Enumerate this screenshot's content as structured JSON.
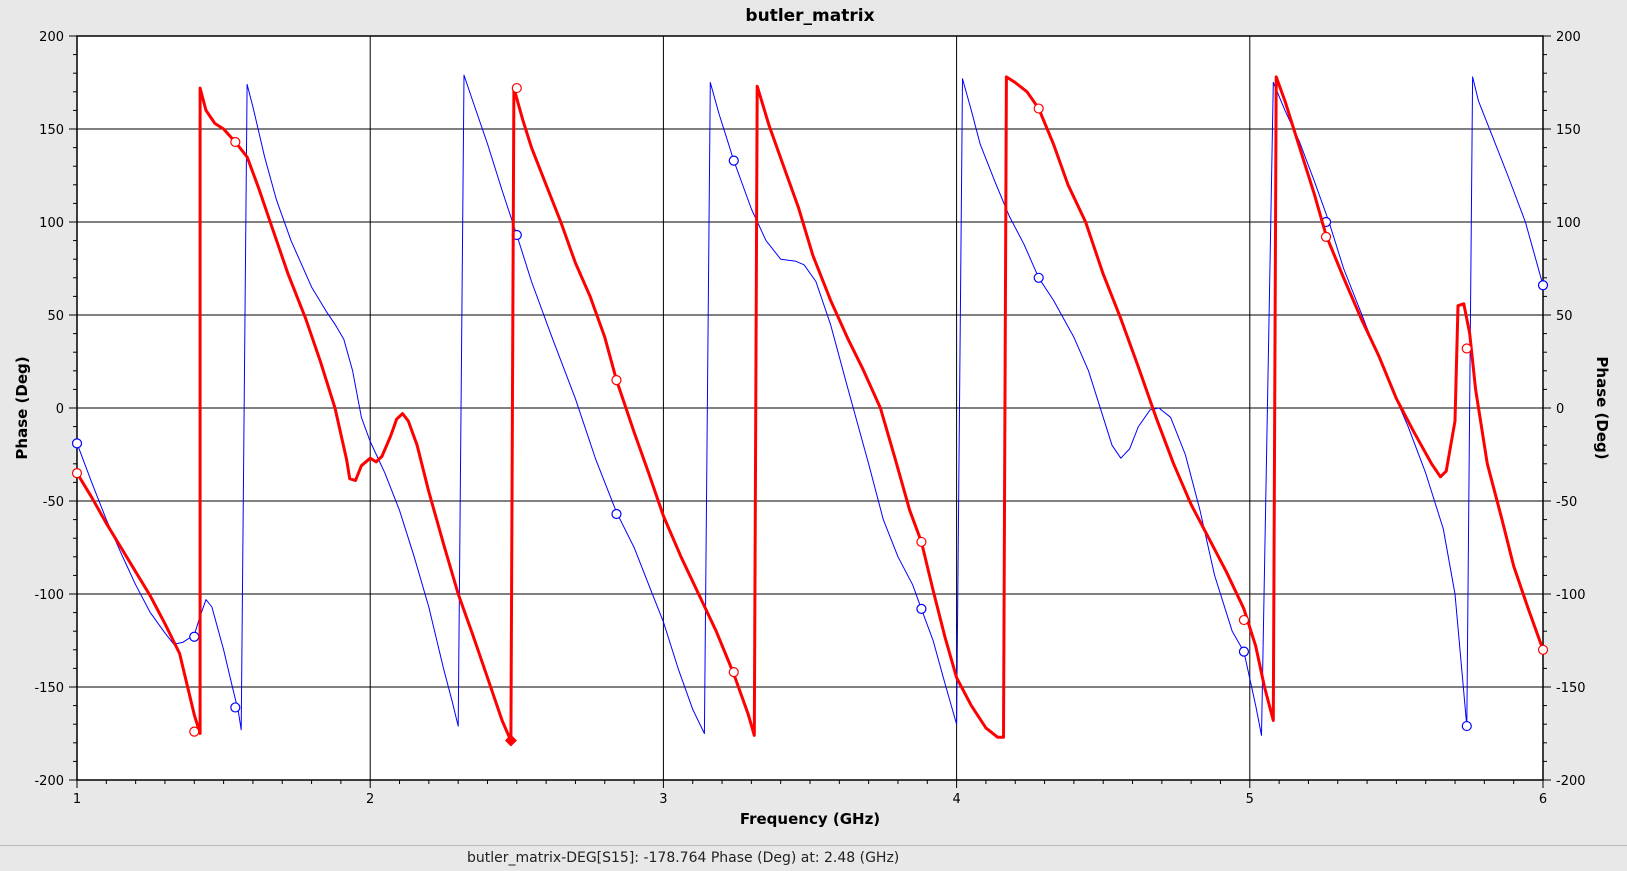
{
  "colors": {
    "background": "#e8e8e8",
    "plot_background": "#ffffff",
    "grid": "#000000",
    "series_s15": "#ff0000",
    "series_other": "#0000ff"
  },
  "status_bar": {
    "text": "butler_matrix-DEG[S15]: -178.764 Phase (Deg) at: 2.48 (GHz)"
  },
  "chart_data": {
    "type": "line",
    "title": "butler_matrix",
    "xlabel": "Frequency (GHz)",
    "ylabel": "Phase (Deg)",
    "ylabel_right": "Phase (Deg)",
    "xlim": [
      1,
      6
    ],
    "ylim": [
      -200,
      200
    ],
    "x_ticks": [
      1,
      2,
      3,
      4,
      5,
      6
    ],
    "y_ticks": [
      -200,
      -150,
      -100,
      -50,
      0,
      50,
      100,
      150,
      200
    ],
    "x_minor_step": 0.1,
    "y_minor_step": 10,
    "grid": true,
    "legend": "none",
    "series": [
      {
        "color": "#ff0000",
        "line_width": 3,
        "points": [
          [
            1.0,
            -35
          ],
          [
            1.05,
            -48
          ],
          [
            1.1,
            -62
          ],
          [
            1.15,
            -75
          ],
          [
            1.2,
            -88
          ],
          [
            1.25,
            -101
          ],
          [
            1.3,
            -116
          ],
          [
            1.35,
            -132
          ],
          [
            1.4,
            -165
          ],
          [
            1.42,
            -175
          ],
          [
            1.42,
            172
          ],
          [
            1.44,
            160
          ],
          [
            1.47,
            153
          ],
          [
            1.5,
            150
          ],
          [
            1.54,
            143
          ],
          [
            1.58,
            135
          ],
          [
            1.62,
            118
          ],
          [
            1.67,
            95
          ],
          [
            1.72,
            72
          ],
          [
            1.78,
            48
          ],
          [
            1.83,
            25
          ],
          [
            1.88,
            0
          ],
          [
            1.92,
            -28
          ],
          [
            1.93,
            -38
          ],
          [
            1.95,
            -39
          ],
          [
            1.97,
            -31
          ],
          [
            2.0,
            -27
          ],
          [
            2.02,
            -29
          ],
          [
            2.04,
            -26
          ],
          [
            2.07,
            -15
          ],
          [
            2.09,
            -6
          ],
          [
            2.11,
            -3
          ],
          [
            2.13,
            -7
          ],
          [
            2.16,
            -20
          ],
          [
            2.2,
            -45
          ],
          [
            2.25,
            -73
          ],
          [
            2.3,
            -100
          ],
          [
            2.35,
            -122
          ],
          [
            2.4,
            -145
          ],
          [
            2.45,
            -168
          ],
          [
            2.48,
            -179
          ],
          [
            2.49,
            172
          ],
          [
            2.52,
            155
          ],
          [
            2.55,
            140
          ],
          [
            2.6,
            120
          ],
          [
            2.65,
            100
          ],
          [
            2.7,
            78
          ],
          [
            2.75,
            60
          ],
          [
            2.8,
            38
          ],
          [
            2.84,
            15
          ],
          [
            2.9,
            -13
          ],
          [
            2.95,
            -35
          ],
          [
            3.0,
            -58
          ],
          [
            3.06,
            -80
          ],
          [
            3.12,
            -100
          ],
          [
            3.18,
            -120
          ],
          [
            3.24,
            -143
          ],
          [
            3.29,
            -165
          ],
          [
            3.31,
            -176
          ],
          [
            3.32,
            173
          ],
          [
            3.36,
            152
          ],
          [
            3.41,
            130
          ],
          [
            3.46,
            108
          ],
          [
            3.51,
            82
          ],
          [
            3.57,
            58
          ],
          [
            3.63,
            37
          ],
          [
            3.68,
            21
          ],
          [
            3.74,
            0
          ],
          [
            3.79,
            -27
          ],
          [
            3.84,
            -55
          ],
          [
            3.88,
            -72
          ],
          [
            3.92,
            -98
          ],
          [
            3.96,
            -123
          ],
          [
            4.0,
            -145
          ],
          [
            4.05,
            -160
          ],
          [
            4.1,
            -172
          ],
          [
            4.14,
            -177
          ],
          [
            4.16,
            -177
          ],
          [
            4.17,
            178
          ],
          [
            4.2,
            175
          ],
          [
            4.24,
            170
          ],
          [
            4.28,
            161
          ],
          [
            4.33,
            142
          ],
          [
            4.38,
            120
          ],
          [
            4.44,
            100
          ],
          [
            4.5,
            72
          ],
          [
            4.56,
            48
          ],
          [
            4.62,
            22
          ],
          [
            4.68,
            -5
          ],
          [
            4.74,
            -30
          ],
          [
            4.8,
            -52
          ],
          [
            4.86,
            -70
          ],
          [
            4.92,
            -88
          ],
          [
            4.98,
            -108
          ],
          [
            5.02,
            -128
          ],
          [
            5.05,
            -150
          ],
          [
            5.08,
            -168
          ],
          [
            5.09,
            178
          ],
          [
            5.12,
            165
          ],
          [
            5.17,
            140
          ],
          [
            5.22,
            115
          ],
          [
            5.26,
            93
          ],
          [
            5.32,
            70
          ],
          [
            5.38,
            48
          ],
          [
            5.44,
            28
          ],
          [
            5.5,
            5
          ],
          [
            5.56,
            -13
          ],
          [
            5.62,
            -30
          ],
          [
            5.65,
            -37
          ],
          [
            5.67,
            -34
          ],
          [
            5.7,
            -7
          ],
          [
            5.71,
            55
          ],
          [
            5.73,
            56
          ],
          [
            5.75,
            40
          ],
          [
            5.77,
            10
          ],
          [
            5.81,
            -30
          ],
          [
            5.86,
            -60
          ],
          [
            5.9,
            -85
          ],
          [
            5.95,
            -108
          ],
          [
            6.0,
            -130
          ]
        ],
        "markers": [
          [
            1.0,
            -35
          ],
          [
            1.4,
            -174
          ],
          [
            1.54,
            143
          ],
          [
            2.5,
            172
          ],
          [
            2.84,
            15
          ],
          [
            3.24,
            -142
          ],
          [
            3.88,
            -72
          ],
          [
            4.28,
            161
          ],
          [
            4.98,
            -114
          ],
          [
            5.26,
            92
          ],
          [
            5.74,
            32
          ],
          [
            6.0,
            -130
          ]
        ],
        "selected_marker": [
          2.48,
          -178.764
        ]
      },
      {
        "color": "#0000ff",
        "line_width": 1,
        "points": [
          [
            1.0,
            -19
          ],
          [
            1.05,
            -40
          ],
          [
            1.1,
            -60
          ],
          [
            1.15,
            -78
          ],
          [
            1.2,
            -95
          ],
          [
            1.25,
            -110
          ],
          [
            1.3,
            -121
          ],
          [
            1.33,
            -127
          ],
          [
            1.36,
            -126
          ],
          [
            1.4,
            -122
          ],
          [
            1.42,
            -112
          ],
          [
            1.44,
            -103
          ],
          [
            1.46,
            -107
          ],
          [
            1.5,
            -130
          ],
          [
            1.53,
            -150
          ],
          [
            1.55,
            -163
          ],
          [
            1.56,
            -173
          ],
          [
            1.58,
            174
          ],
          [
            1.6,
            162
          ],
          [
            1.64,
            135
          ],
          [
            1.68,
            112
          ],
          [
            1.73,
            90
          ],
          [
            1.8,
            65
          ],
          [
            1.85,
            52
          ],
          [
            1.88,
            45
          ],
          [
            1.91,
            37
          ],
          [
            1.94,
            20
          ],
          [
            1.97,
            -5
          ],
          [
            2.0,
            -18
          ],
          [
            2.05,
            -35
          ],
          [
            2.1,
            -55
          ],
          [
            2.15,
            -80
          ],
          [
            2.2,
            -107
          ],
          [
            2.25,
            -140
          ],
          [
            2.28,
            -158
          ],
          [
            2.3,
            -171
          ],
          [
            2.32,
            179
          ],
          [
            2.35,
            165
          ],
          [
            2.4,
            142
          ],
          [
            2.45,
            117
          ],
          [
            2.5,
            93
          ],
          [
            2.55,
            68
          ],
          [
            2.62,
            38
          ],
          [
            2.7,
            5
          ],
          [
            2.77,
            -28
          ],
          [
            2.84,
            -56
          ],
          [
            2.9,
            -75
          ],
          [
            2.95,
            -95
          ],
          [
            3.0,
            -115
          ],
          [
            3.05,
            -140
          ],
          [
            3.1,
            -162
          ],
          [
            3.14,
            -175
          ],
          [
            3.16,
            175
          ],
          [
            3.19,
            158
          ],
          [
            3.24,
            133
          ],
          [
            3.3,
            107
          ],
          [
            3.35,
            90
          ],
          [
            3.4,
            80
          ],
          [
            3.45,
            79
          ],
          [
            3.48,
            77
          ],
          [
            3.52,
            68
          ],
          [
            3.57,
            45
          ],
          [
            3.63,
            10
          ],
          [
            3.7,
            -30
          ],
          [
            3.75,
            -60
          ],
          [
            3.8,
            -80
          ],
          [
            3.85,
            -95
          ],
          [
            3.88,
            -108
          ],
          [
            3.92,
            -125
          ],
          [
            3.96,
            -148
          ],
          [
            4.0,
            -170
          ],
          [
            4.02,
            177
          ],
          [
            4.05,
            160
          ],
          [
            4.08,
            142
          ],
          [
            4.13,
            122
          ],
          [
            4.18,
            103
          ],
          [
            4.23,
            88
          ],
          [
            4.28,
            70
          ],
          [
            4.33,
            58
          ],
          [
            4.4,
            38
          ],
          [
            4.45,
            20
          ],
          [
            4.5,
            -5
          ],
          [
            4.53,
            -20
          ],
          [
            4.56,
            -27
          ],
          [
            4.59,
            -22
          ],
          [
            4.62,
            -10
          ],
          [
            4.66,
            -1
          ],
          [
            4.69,
            0
          ],
          [
            4.73,
            -5
          ],
          [
            4.78,
            -25
          ],
          [
            4.83,
            -55
          ],
          [
            4.88,
            -90
          ],
          [
            4.94,
            -120
          ],
          [
            4.98,
            -131
          ],
          [
            5.02,
            -160
          ],
          [
            5.04,
            -176
          ],
          [
            5.08,
            175
          ],
          [
            5.12,
            160
          ],
          [
            5.17,
            143
          ],
          [
            5.22,
            122
          ],
          [
            5.27,
            100
          ],
          [
            5.32,
            75
          ],
          [
            5.37,
            55
          ],
          [
            5.42,
            35
          ],
          [
            5.48,
            12
          ],
          [
            5.54,
            -10
          ],
          [
            5.6,
            -35
          ],
          [
            5.66,
            -65
          ],
          [
            5.7,
            -100
          ],
          [
            5.74,
            -171
          ],
          [
            5.76,
            178
          ],
          [
            5.78,
            165
          ],
          [
            5.83,
            145
          ],
          [
            5.88,
            125
          ],
          [
            5.94,
            100
          ],
          [
            6.0,
            66
          ]
        ],
        "markers": [
          [
            1.0,
            -19
          ],
          [
            1.4,
            -123
          ],
          [
            1.54,
            -161
          ],
          [
            2.5,
            93
          ],
          [
            2.84,
            -57
          ],
          [
            3.24,
            133
          ],
          [
            3.88,
            -108
          ],
          [
            4.28,
            70
          ],
          [
            4.98,
            -131
          ],
          [
            5.26,
            100
          ],
          [
            5.74,
            -171
          ],
          [
            6.0,
            66
          ]
        ]
      }
    ]
  }
}
